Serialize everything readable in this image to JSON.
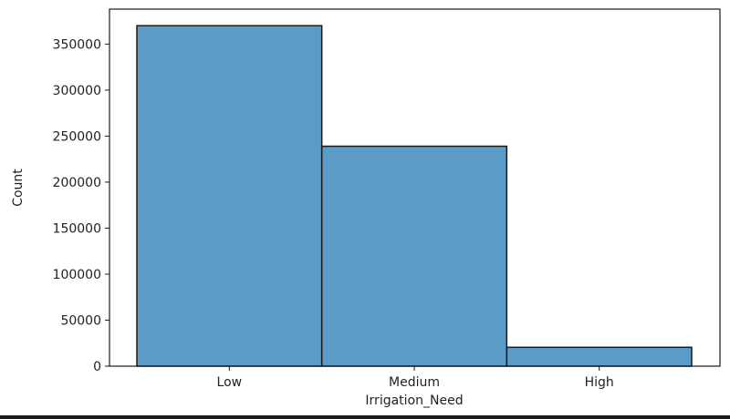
{
  "chart_data": {
    "type": "bar",
    "title": "",
    "xlabel": "Irrigation_Need",
    "ylabel": "Count",
    "categories": [
      "Low",
      "Medium",
      "High"
    ],
    "values": [
      370000,
      239000,
      20500
    ],
    "ylim": [
      0,
      388000
    ],
    "yticks": [
      0,
      50000,
      100000,
      150000,
      200000,
      250000,
      300000,
      350000
    ],
    "ytick_labels": [
      "0",
      "50000",
      "100000",
      "150000",
      "200000",
      "250000",
      "300000",
      "350000"
    ],
    "grid": false,
    "bar_color": "#5b9bc8",
    "edge_color": "#1a1a1a"
  }
}
